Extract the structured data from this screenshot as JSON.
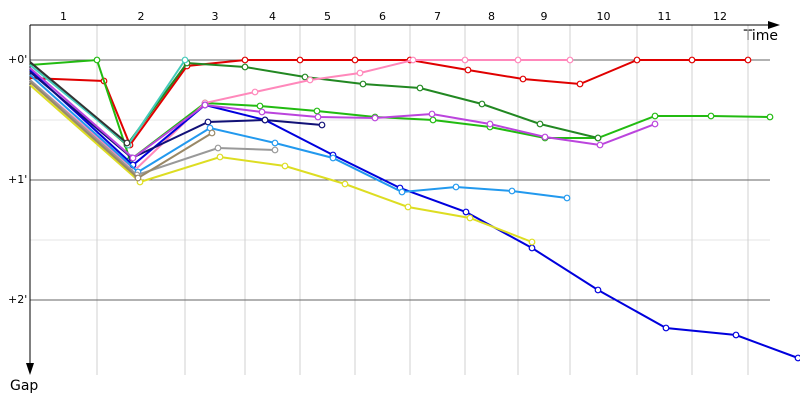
{
  "chart_data": {
    "type": "line",
    "x_label": "Time",
    "y_label": "Gap",
    "xlim": [
      0,
      375
    ],
    "ylim": [
      -17.5,
      157.5
    ],
    "yticks": [
      {
        "value": 0,
        "label": "+0'"
      },
      {
        "value": 60,
        "label": "+1'"
      },
      {
        "value": 120,
        "label": "+2'"
      }
    ],
    "minor_yticks": [
      30,
      90
    ],
    "laps": [
      "1",
      "2",
      "3",
      "4",
      "5",
      "6",
      "7",
      "8",
      "9",
      "10",
      "11",
      "12"
    ],
    "lap_bounds": [
      0,
      33.5,
      77.5,
      107.5,
      135,
      162.5,
      190,
      217.5,
      244,
      270,
      303.5,
      331,
      359
    ],
    "grid": true,
    "series": [
      {
        "color": "#e00000",
        "x": [
          0,
          37,
          50,
          78.5,
          107.5,
          135,
          162.5,
          190,
          219,
          246.5,
          275,
          303.5,
          331,
          359
        ],
        "values": [
          9,
          10.5,
          42.5,
          3,
          0,
          0,
          0,
          0,
          5,
          9.5,
          12,
          0,
          0,
          0
        ]
      },
      {
        "color": "#22bb11",
        "x": [
          0,
          33.5,
          50,
          87.5,
          115,
          143.5,
          172.5,
          201.5,
          230,
          257.5,
          284,
          312.5,
          340.5,
          370
        ],
        "values": [
          2.5,
          0,
          50,
          21.5,
          23,
          25.5,
          28.5,
          30,
          33.5,
          39,
          39,
          28,
          28,
          28.5
        ]
      },
      {
        "color": "#228822",
        "x": [
          0,
          48.5,
          78.5,
          107.5,
          137.5,
          166.5,
          195,
          226,
          255,
          284
        ],
        "values": [
          1,
          42.5,
          1.5,
          3.5,
          8.5,
          12,
          14,
          22,
          32,
          39
        ]
      },
      {
        "color": "#ff88bb",
        "x": [
          0,
          52.5,
          87.5,
          112.5,
          140,
          165,
          191.5,
          217.5,
          244,
          270
        ],
        "values": [
          10,
          55,
          21.5,
          16,
          10,
          6.5,
          0,
          0,
          0,
          0
        ]
      },
      {
        "color": "#0000dd",
        "x": [
          0,
          51.5,
          87.5,
          117.5,
          151.5,
          185,
          218,
          251,
          284,
          318,
          353,
          384
        ],
        "values": [
          5,
          52.5,
          22.5,
          30,
          47.5,
          64,
          76,
          94,
          115,
          134,
          137.5,
          149
        ]
      },
      {
        "color": "#111177",
        "x": [
          0,
          51,
          89,
          117.5,
          146
        ],
        "values": [
          6,
          49,
          31,
          30,
          32.5
        ]
      },
      {
        "color": "#2299ee",
        "x": [
          0,
          54,
          90,
          122.5,
          151.5,
          186,
          213,
          241,
          268.5
        ],
        "values": [
          7.5,
          56,
          34,
          41.5,
          49,
          66,
          63.5,
          65.5,
          69
        ]
      },
      {
        "color": "#bb44dd",
        "x": [
          0,
          51.5,
          87.5,
          116,
          144,
          172.5,
          201,
          230,
          257.5,
          285,
          312.5
        ],
        "values": [
          4,
          49,
          22.5,
          26,
          28.5,
          29,
          27,
          32,
          38.5,
          42.5,
          32
        ]
      },
      {
        "color": "#dddd22",
        "x": [
          0,
          55,
          95,
          127.5,
          157.5,
          189,
          220,
          251
        ],
        "values": [
          12.5,
          61,
          48.5,
          53,
          62,
          73.5,
          79,
          91
        ]
      },
      {
        "color": "#999999",
        "x": [
          0,
          53.5,
          94,
          122.5
        ],
        "values": [
          10,
          57.5,
          44,
          45
        ]
      },
      {
        "color": "#998866",
        "x": [
          0,
          54,
          91
        ],
        "values": [
          11,
          59,
          36.5
        ]
      },
      {
        "color": "#44ccbb",
        "x": [
          0,
          49,
          77.5
        ],
        "values": [
          2.5,
          42.5,
          0
        ]
      },
      {
        "color": "#333333",
        "x": [
          0,
          48.5
        ],
        "values": [
          1,
          41.5
        ]
      }
    ]
  }
}
